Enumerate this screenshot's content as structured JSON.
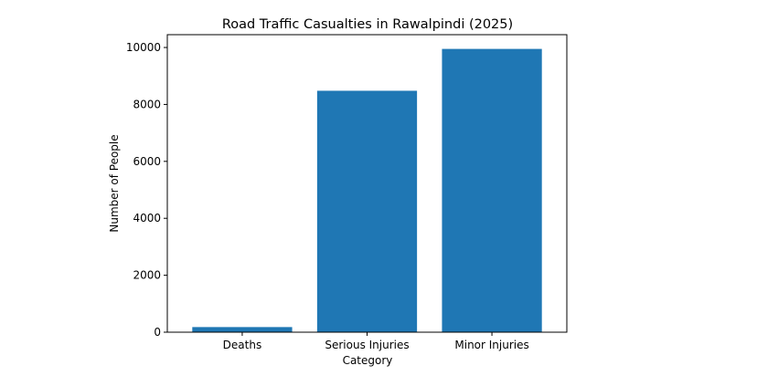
{
  "chart_data": {
    "type": "bar",
    "title": "Road Traffic Casualties in Rawalpindi (2025)",
    "xlabel": "Category",
    "ylabel": "Number of People",
    "categories": [
      "Deaths",
      "Serious Injuries",
      "Minor Injuries"
    ],
    "values": [
      180,
      8480,
      9950
    ],
    "ylim": [
      0,
      10450
    ],
    "yticks": [
      0,
      2000,
      4000,
      6000,
      8000,
      10000
    ],
    "grid": false,
    "legend": "none",
    "bar_color": "#1f77b4"
  }
}
